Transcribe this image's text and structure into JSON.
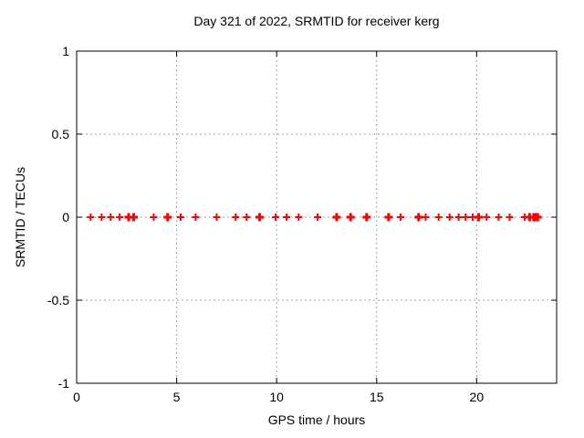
{
  "figure": {
    "background": "#ffffff"
  },
  "chart_data": {
    "type": "scatter",
    "title": "Day 321 of 2022, SRMTID for receiver kerg",
    "xlabel": "GPS time / hours",
    "ylabel": "SRMTID / TECUs",
    "xlim": [
      0,
      24
    ],
    "ylim": [
      -1,
      1
    ],
    "xticks": [
      0,
      5,
      10,
      15,
      20
    ],
    "xtick_labels": [
      "0",
      "5",
      "10",
      "15",
      "20"
    ],
    "yticks": [
      1,
      0.5,
      0,
      -0.5,
      -1
    ],
    "ytick_labels": [
      "1",
      "0.5",
      "0",
      "-0.5",
      "-1"
    ],
    "grid": true,
    "legend": "none",
    "marker": {
      "shape": "plus",
      "color": "#ff0000"
    },
    "colors": {
      "marker": "#ff0000",
      "axis": "#000000",
      "grid": "#a0a0a0",
      "text": "#000000"
    },
    "series": [
      {
        "name": "SRMTID",
        "points": [
          {
            "x": 0.7,
            "y": 0,
            "bold": false
          },
          {
            "x": 1.25,
            "y": 0,
            "bold": false
          },
          {
            "x": 1.7,
            "y": 0,
            "bold": false
          },
          {
            "x": 2.15,
            "y": 0,
            "bold": false
          },
          {
            "x": 2.6,
            "y": 0,
            "bold": true
          },
          {
            "x": 2.85,
            "y": 0,
            "bold": true
          },
          {
            "x": 3.85,
            "y": 0,
            "bold": false
          },
          {
            "x": 4.55,
            "y": 0,
            "bold": true
          },
          {
            "x": 5.2,
            "y": 0,
            "bold": false
          },
          {
            "x": 5.95,
            "y": 0,
            "bold": false
          },
          {
            "x": 7.0,
            "y": 0,
            "bold": false
          },
          {
            "x": 7.95,
            "y": 0,
            "bold": false
          },
          {
            "x": 8.5,
            "y": 0,
            "bold": false
          },
          {
            "x": 9.15,
            "y": 0,
            "bold": true
          },
          {
            "x": 9.95,
            "y": 0,
            "bold": false
          },
          {
            "x": 10.5,
            "y": 0,
            "bold": false
          },
          {
            "x": 11.1,
            "y": 0,
            "bold": false
          },
          {
            "x": 12.05,
            "y": 0,
            "bold": false
          },
          {
            "x": 13.0,
            "y": 0,
            "bold": true
          },
          {
            "x": 13.7,
            "y": 0,
            "bold": true
          },
          {
            "x": 14.5,
            "y": 0,
            "bold": true
          },
          {
            "x": 15.6,
            "y": 0,
            "bold": true
          },
          {
            "x": 16.2,
            "y": 0,
            "bold": false
          },
          {
            "x": 17.1,
            "y": 0,
            "bold": true
          },
          {
            "x": 17.45,
            "y": 0,
            "bold": false
          },
          {
            "x": 18.1,
            "y": 0,
            "bold": false
          },
          {
            "x": 18.65,
            "y": 0,
            "bold": false
          },
          {
            "x": 19.1,
            "y": 0,
            "bold": false
          },
          {
            "x": 19.45,
            "y": 0,
            "bold": false
          },
          {
            "x": 19.8,
            "y": 0,
            "bold": false
          },
          {
            "x": 20.1,
            "y": 0,
            "bold": true
          },
          {
            "x": 20.5,
            "y": 0,
            "bold": false
          },
          {
            "x": 21.1,
            "y": 0,
            "bold": false
          },
          {
            "x": 21.65,
            "y": 0,
            "bold": false
          },
          {
            "x": 22.4,
            "y": 0,
            "bold": false
          },
          {
            "x": 22.65,
            "y": 0,
            "bold": true
          },
          {
            "x": 22.85,
            "y": 0,
            "bold": true
          },
          {
            "x": 22.95,
            "y": 0,
            "bold": true
          },
          {
            "x": 23.05,
            "y": 0,
            "bold": true
          }
        ]
      }
    ]
  }
}
